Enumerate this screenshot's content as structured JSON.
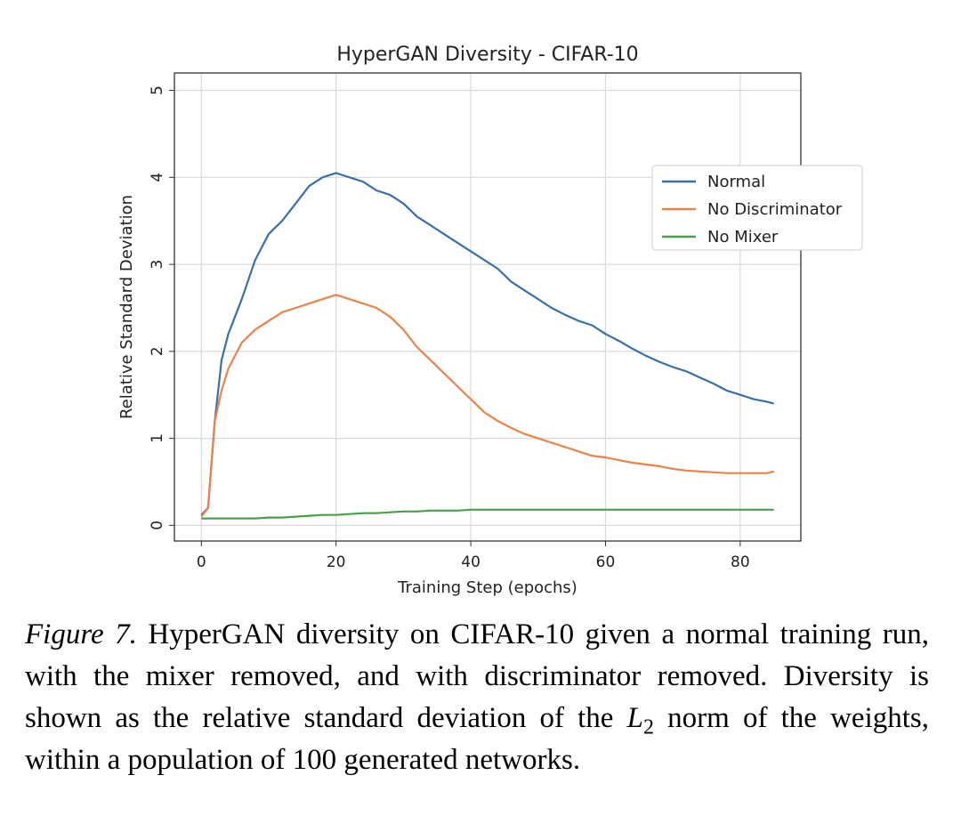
{
  "chart_data": {
    "type": "line",
    "title": "HyperGAN Diversity - CIFAR-10",
    "xlabel": "Training Step (epochs)",
    "ylabel": "Relative Standard Deviation",
    "xlim": [
      -4,
      89
    ],
    "ylim": [
      -0.18,
      5.2
    ],
    "x_ticks": [
      0,
      20,
      40,
      60,
      80
    ],
    "x_tick_labels": [
      "0",
      "20",
      "40",
      "60",
      "80"
    ],
    "y_ticks": [
      0,
      1,
      2,
      3,
      4,
      5
    ],
    "y_tick_labels": [
      "0",
      "1",
      "2",
      "3",
      "4",
      "5"
    ],
    "grid": true,
    "legend_position": "upper right",
    "x": [
      0,
      1,
      2,
      3,
      4,
      6,
      8,
      10,
      12,
      14,
      16,
      18,
      20,
      22,
      24,
      26,
      28,
      30,
      32,
      34,
      36,
      38,
      40,
      42,
      44,
      46,
      48,
      50,
      52,
      54,
      56,
      58,
      60,
      62,
      64,
      66,
      68,
      70,
      72,
      74,
      76,
      78,
      80,
      82,
      84,
      85
    ],
    "series": [
      {
        "name": "Normal",
        "color": "#3a6fa8",
        "values": [
          0.12,
          0.2,
          1.2,
          1.9,
          2.2,
          2.6,
          3.05,
          3.35,
          3.5,
          3.7,
          3.9,
          4.0,
          4.05,
          4.0,
          3.95,
          3.85,
          3.8,
          3.7,
          3.55,
          3.45,
          3.35,
          3.25,
          3.15,
          3.05,
          2.95,
          2.8,
          2.7,
          2.6,
          2.5,
          2.42,
          2.35,
          2.3,
          2.2,
          2.12,
          2.03,
          1.95,
          1.88,
          1.82,
          1.77,
          1.7,
          1.63,
          1.55,
          1.5,
          1.45,
          1.42,
          1.4
        ]
      },
      {
        "name": "No Discriminator",
        "color": "#e8834a",
        "values": [
          0.1,
          0.2,
          1.2,
          1.55,
          1.8,
          2.1,
          2.25,
          2.35,
          2.45,
          2.5,
          2.55,
          2.6,
          2.65,
          2.6,
          2.55,
          2.5,
          2.4,
          2.25,
          2.05,
          1.9,
          1.75,
          1.6,
          1.45,
          1.3,
          1.2,
          1.12,
          1.05,
          1.0,
          0.95,
          0.9,
          0.85,
          0.8,
          0.78,
          0.75,
          0.72,
          0.7,
          0.68,
          0.65,
          0.63,
          0.62,
          0.61,
          0.6,
          0.6,
          0.6,
          0.6,
          0.62
        ]
      },
      {
        "name": "No Mixer",
        "color": "#4aa04a",
        "values": [
          0.08,
          0.08,
          0.08,
          0.08,
          0.08,
          0.08,
          0.08,
          0.09,
          0.09,
          0.1,
          0.11,
          0.12,
          0.12,
          0.13,
          0.14,
          0.14,
          0.15,
          0.16,
          0.16,
          0.17,
          0.17,
          0.17,
          0.18,
          0.18,
          0.18,
          0.18,
          0.18,
          0.18,
          0.18,
          0.18,
          0.18,
          0.18,
          0.18,
          0.18,
          0.18,
          0.18,
          0.18,
          0.18,
          0.18,
          0.18,
          0.18,
          0.18,
          0.18,
          0.18,
          0.18,
          0.18
        ]
      }
    ]
  },
  "caption": {
    "label": "Figure 7.",
    "text_before_math": " HyperGAN diversity on CIFAR-10 given a normal training run, with the mixer removed, and with discriminator re­moved. Diversity is shown as the relative standard deviation of the ",
    "math_symbol": "L",
    "math_subscript": "2",
    "text_after_math": " norm of the weights, within a population of 100 generated networks."
  }
}
